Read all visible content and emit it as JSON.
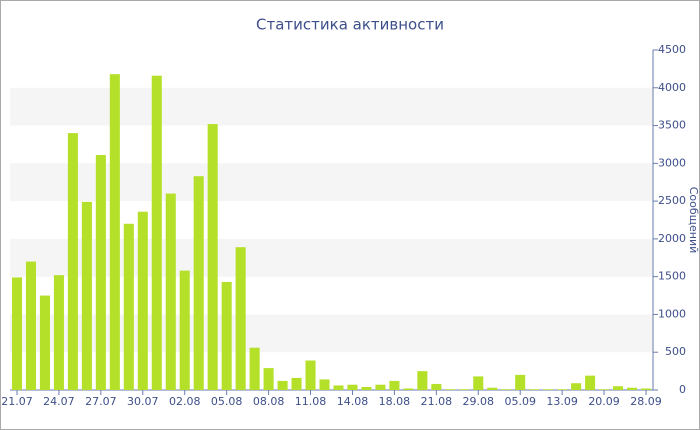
{
  "chart_data": {
    "type": "bar",
    "title": "Статистика активности",
    "y_axis_label": "Сообщений",
    "categories": [
      "21.07",
      null,
      null,
      "24.07",
      null,
      null,
      "27.07",
      null,
      null,
      "30.07",
      null,
      null,
      "02.08",
      null,
      null,
      "05.08",
      null,
      null,
      "08.08",
      null,
      null,
      "11.08",
      null,
      null,
      "14.08",
      null,
      null,
      "18.08",
      null,
      null,
      "21.08",
      null,
      null,
      "29.08",
      null,
      null,
      "05.09",
      null,
      null,
      "13.09",
      null,
      null,
      "20.09",
      null,
      null,
      "28.09"
    ],
    "values": [
      1490,
      1700,
      1250,
      1520,
      3400,
      2490,
      3110,
      4180,
      2200,
      2360,
      4160,
      2600,
      1580,
      2830,
      3520,
      1430,
      1890,
      560,
      290,
      120,
      160,
      390,
      140,
      60,
      70,
      40,
      70,
      120,
      20,
      250,
      80,
      10,
      10,
      180,
      30,
      10,
      200,
      10,
      10,
      10,
      90,
      190,
      10,
      50,
      30,
      20
    ],
    "color": "#b5e02a",
    "ylim": [
      0,
      4500
    ],
    "yticks": [
      0,
      500,
      1000,
      1500,
      2000,
      2500,
      3000,
      3500,
      4000,
      4500
    ],
    "grid": "bands",
    "y_axis_side": "right"
  }
}
